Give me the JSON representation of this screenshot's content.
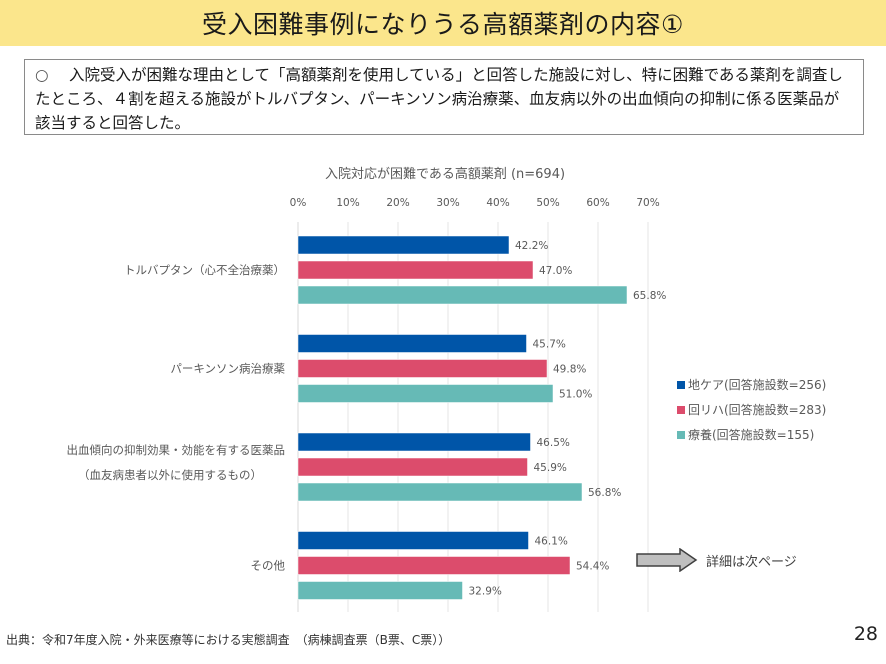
{
  "header": {
    "title": "受入困難事例になりうる高額薬剤の内容①"
  },
  "summary": {
    "bullet": "○",
    "text": "入院受入が困難な理由として「高額薬剤を使用している」と回答した施設に対し、特に困難である薬剤を調査したところ、４割を超える施設がトルバプタン、パーキンソン病治療薬、血友病以外の出血傾向の抑制に係る医薬品が該当すると回答した。"
  },
  "chart_data": {
    "type": "bar",
    "orientation": "horizontal",
    "title": "入院対応が困難である高額薬剤 (n=694)",
    "xlabel": "",
    "ylabel": "",
    "xlim": [
      0,
      70
    ],
    "x_ticks": [
      "0%",
      "10%",
      "20%",
      "30%",
      "40%",
      "50%",
      "60%",
      "70%"
    ],
    "grid": true,
    "legend_position": "right",
    "categories": [
      [
        "トルバプタン（心不全治療薬）"
      ],
      [
        "パーキンソン病治療薬"
      ],
      [
        "出血傾向の抑制効果・効能を有する医薬品",
        "（血友病患者以外に使用するもの）"
      ],
      [
        "その他"
      ]
    ],
    "series": [
      {
        "name": "地ケア(回答施設数=256)",
        "color": "#0055a8",
        "values": [
          42.2,
          45.7,
          46.5,
          46.1
        ],
        "labels": [
          "42.2%",
          "45.7%",
          "46.5%",
          "46.1%"
        ]
      },
      {
        "name": "回リハ(回答施設数=283)",
        "color": "#dc4c6c",
        "values": [
          47.0,
          49.8,
          45.9,
          54.4
        ],
        "labels": [
          "47.0%",
          "49.8%",
          "45.9%",
          "54.4%"
        ]
      },
      {
        "name": "療養(回答施設数=155)",
        "color": "#66bab6",
        "values": [
          65.8,
          51.0,
          56.8,
          32.9
        ],
        "labels": [
          "65.8%",
          "51.0%",
          "56.8%",
          "32.9%"
        ]
      }
    ]
  },
  "next_page": {
    "label": "詳細は次ページ",
    "icon": "right-arrow-icon"
  },
  "footer": {
    "source": "出典：令和7年度入院・外来医療等における実態調査　（病棟調査票（B票、C票））",
    "page_number": "28"
  }
}
